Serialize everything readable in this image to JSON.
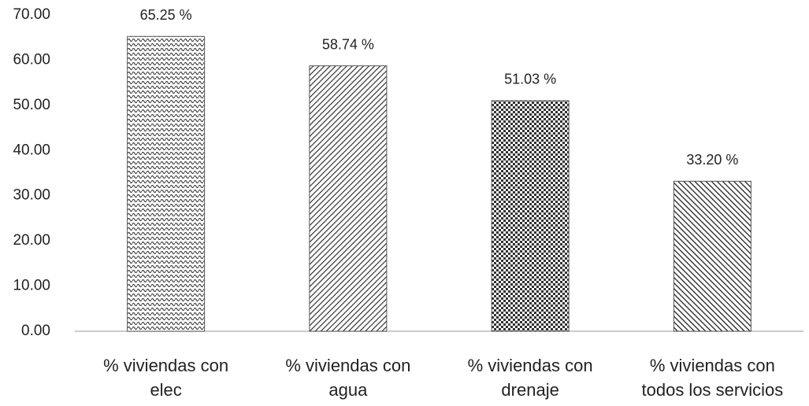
{
  "chart_data": {
    "type": "bar",
    "categories": [
      "% viviendas con elec",
      "% viviendas con agua",
      "% viviendas con drenaje",
      "% viviendas con todos los servicios"
    ],
    "values": [
      65.25,
      58.74,
      51.03,
      33.2
    ],
    "value_labels": [
      "65.25 %",
      "58.74 %",
      "51.03 %",
      "33.20 %"
    ],
    "ylim": [
      0,
      70
    ],
    "yticks": [
      {
        "value": 0,
        "label": "0.00"
      },
      {
        "value": 10,
        "label": "10.00"
      },
      {
        "value": 20,
        "label": "20.00"
      },
      {
        "value": 30,
        "label": "30.00"
      },
      {
        "value": 40,
        "label": "40.00"
      },
      {
        "value": 50,
        "label": "50.00"
      },
      {
        "value": 60,
        "label": "60.00"
      },
      {
        "value": 70,
        "label": "70.00"
      }
    ],
    "grid": false
  }
}
